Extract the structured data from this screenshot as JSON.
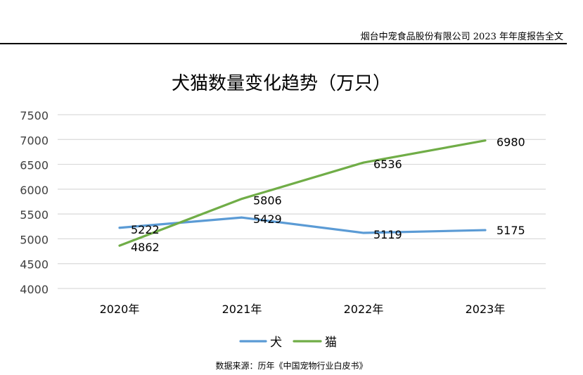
{
  "header": {
    "text": "烟台中宠食品股份有限公司 2023 年年度报告全文"
  },
  "source_note": "数据来源：历年《中国宠物行业白皮书》",
  "chart_data": {
    "type": "line",
    "title": "犬猫数量变化趋势（万只）",
    "xlabel": "",
    "ylabel": "",
    "categories": [
      "2020年",
      "2021年",
      "2022年",
      "2023年"
    ],
    "ylim": [
      4000,
      7500
    ],
    "yticks": [
      4000,
      4500,
      5000,
      5500,
      6000,
      6500,
      7000,
      7500
    ],
    "grid": true,
    "legend": "bottom",
    "data_labels": true,
    "series": [
      {
        "name": "犬",
        "values": [
          5222,
          5429,
          5119,
          5175
        ],
        "color": "#5b9bd5"
      },
      {
        "name": "猫",
        "values": [
          4862,
          5806,
          6536,
          6980
        ],
        "color": "#70ad47"
      }
    ]
  }
}
